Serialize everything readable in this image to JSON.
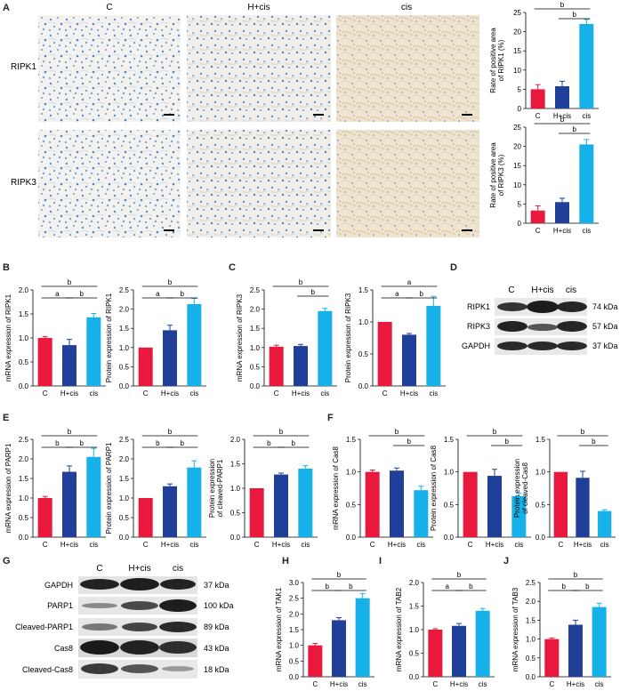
{
  "panels": {
    "A": "A",
    "B": "B",
    "C": "C",
    "D": "D",
    "E": "E",
    "F": "F",
    "G": "G",
    "H": "H",
    "I": "I",
    "J": "J"
  },
  "colors": {
    "c": "#e8193c",
    "hcis": "#1f3f99",
    "cis": "#17b1ea",
    "tissueBlue": "#5b8fd0",
    "tissueBg": "#f2f1ef",
    "tissueCis": "#efe3cf",
    "blot": "#2a2a2a"
  },
  "histology": {
    "columns": [
      "C",
      "H+cis",
      "cis"
    ],
    "rows": [
      "RIPK1",
      "RIPK3"
    ]
  },
  "blotD": {
    "lanes": [
      "C",
      "H+cis",
      "cis"
    ],
    "bands": [
      {
        "name": "RIPK1",
        "kda": "74 kDa"
      },
      {
        "name": "RIPK3",
        "kda": "57 kDa"
      },
      {
        "name": "GAPDH",
        "kda": "37 kDa"
      }
    ]
  },
  "blotG": {
    "lanes": [
      "C",
      "H+cis",
      "cis"
    ],
    "bands": [
      {
        "name": "GAPDH",
        "kda": "37 kDa"
      },
      {
        "name": "PARP1",
        "kda": "100 kDa"
      },
      {
        "name": "Cleaved-PARP1",
        "kda": "89 kDa"
      },
      {
        "name": "Cas8",
        "kda": "43 kDa"
      },
      {
        "name": "Cleaved-Cas8",
        "kda": "18 kDa"
      }
    ]
  },
  "chart_data": [
    {
      "id": "A1",
      "type": "bar",
      "categories": [
        "C",
        "H+cis",
        "cis"
      ],
      "values": [
        5,
        5.8,
        22
      ],
      "errors": [
        1.2,
        1.3,
        1.2
      ],
      "ylabel": [
        "Rate of positive area",
        "of RIPK1 (%)"
      ],
      "ylim": [
        0,
        25
      ],
      "ticks": [
        0,
        5,
        10,
        15,
        20,
        25
      ],
      "sig": [
        {
          "from": 0,
          "to": 2,
          "label": "b"
        },
        {
          "from": 1,
          "to": 2,
          "label": "b"
        }
      ]
    },
    {
      "id": "A2",
      "type": "bar",
      "categories": [
        "C",
        "H+cis",
        "cis"
      ],
      "values": [
        3.3,
        5.5,
        20.5
      ],
      "errors": [
        1.2,
        1,
        1.3
      ],
      "ylabel": [
        "Rate of positive area",
        "of RIPK3 (%)"
      ],
      "ylim": [
        0,
        25
      ],
      "ticks": [
        0,
        5,
        10,
        15,
        20,
        25
      ],
      "sig": [
        {
          "from": 0,
          "to": 2,
          "label": "b"
        },
        {
          "from": 1,
          "to": 2,
          "label": "b"
        }
      ]
    },
    {
      "id": "B1",
      "type": "bar",
      "categories": [
        "C",
        "H+cis",
        "cis"
      ],
      "values": [
        1.0,
        0.85,
        1.43
      ],
      "errors": [
        0.03,
        0.12,
        0.08
      ],
      "ylabel": [
        "mRNA expression of RIPK1"
      ],
      "ylim": [
        0,
        2
      ],
      "ticks": [
        0,
        0.5,
        1.0,
        1.5,
        2.0
      ],
      "sig": [
        {
          "from": 0,
          "to": 2,
          "label": "b"
        },
        {
          "from": 0,
          "to": 1,
          "label": "a"
        },
        {
          "from": 1,
          "to": 2,
          "label": "b"
        }
      ]
    },
    {
      "id": "B2",
      "type": "bar",
      "categories": [
        "C",
        "H+cis",
        "cis"
      ],
      "values": [
        1.0,
        1.45,
        2.13
      ],
      "errors": [
        0,
        0.13,
        0.15
      ],
      "ylabel": [
        "Protein expression of RIPK1"
      ],
      "ylim": [
        0,
        2.5
      ],
      "ticks": [
        0,
        0.5,
        1.0,
        1.5,
        2.0,
        2.5
      ],
      "sig": [
        {
          "from": 0,
          "to": 2,
          "label": "b"
        },
        {
          "from": 0,
          "to": 1,
          "label": "a"
        },
        {
          "from": 1,
          "to": 2,
          "label": "b"
        }
      ]
    },
    {
      "id": "C1",
      "type": "bar",
      "categories": [
        "C",
        "H+cis",
        "cis"
      ],
      "values": [
        1.02,
        1.04,
        1.95
      ],
      "errors": [
        0.04,
        0.04,
        0.07
      ],
      "ylabel": [
        "mRNA expression of RIPK3"
      ],
      "ylim": [
        0,
        2.5
      ],
      "ticks": [
        0,
        0.5,
        1.0,
        1.5,
        2.0,
        2.5
      ],
      "sig": [
        {
          "from": 0,
          "to": 2,
          "label": "b"
        },
        {
          "from": 1,
          "to": 2,
          "label": "b"
        }
      ]
    },
    {
      "id": "C2",
      "type": "bar",
      "categories": [
        "C",
        "H+cis",
        "cis"
      ],
      "values": [
        1.0,
        0.8,
        1.25
      ],
      "errors": [
        0,
        0.02,
        0.15
      ],
      "ylabel": [
        "Protein expression of RIPK3"
      ],
      "ylim": [
        0,
        1.5
      ],
      "ticks": [
        0,
        0.5,
        1.0,
        1.5
      ],
      "sig": [
        {
          "from": 0,
          "to": 2,
          "label": "a"
        },
        {
          "from": 0,
          "to": 1,
          "label": "a"
        },
        {
          "from": 1,
          "to": 2,
          "label": "b"
        }
      ]
    },
    {
      "id": "E1",
      "type": "bar",
      "categories": [
        "C",
        "H+cis",
        "cis"
      ],
      "values": [
        1.0,
        1.67,
        2.05
      ],
      "errors": [
        0.04,
        0.15,
        0.22
      ],
      "ylabel": [
        "mRNA expression of PARP1"
      ],
      "ylim": [
        0,
        2.5
      ],
      "ticks": [
        0,
        0.5,
        1.0,
        1.5,
        2.0,
        2.5
      ],
      "sig": [
        {
          "from": 0,
          "to": 2,
          "label": "b"
        },
        {
          "from": 0,
          "to": 1,
          "label": "b"
        },
        {
          "from": 1,
          "to": 2,
          "label": "b"
        }
      ]
    },
    {
      "id": "E2",
      "type": "bar",
      "categories": [
        "C",
        "H+cis",
        "cis"
      ],
      "values": [
        1.0,
        1.3,
        1.78
      ],
      "errors": [
        0,
        0.06,
        0.17
      ],
      "ylabel": [
        "Protein expression of PARP1"
      ],
      "ylim": [
        0,
        2.5
      ],
      "ticks": [
        0,
        0.5,
        1.0,
        1.5,
        2.0,
        2.5
      ],
      "sig": [
        {
          "from": 0,
          "to": 2,
          "label": "b"
        },
        {
          "from": 0,
          "to": 1,
          "label": "b"
        },
        {
          "from": 1,
          "to": 2,
          "label": "b"
        }
      ]
    },
    {
      "id": "E3",
      "type": "bar",
      "categories": [
        "C",
        "H+cis",
        "cis"
      ],
      "values": [
        1.0,
        1.28,
        1.4
      ],
      "errors": [
        0,
        0.03,
        0.06
      ],
      "ylabel": [
        "Protein expression",
        "of cleaved-PARP1"
      ],
      "ylim": [
        0,
        2
      ],
      "ticks": [
        0,
        0.5,
        1.0,
        1.5,
        2.0
      ],
      "sig": [
        {
          "from": 0,
          "to": 2,
          "label": "b"
        },
        {
          "from": 0,
          "to": 1,
          "label": "b"
        },
        {
          "from": 1,
          "to": 2,
          "label": "b"
        }
      ]
    },
    {
      "id": "F1",
      "type": "bar",
      "categories": [
        "C",
        "H+cis",
        "cis"
      ],
      "values": [
        1.0,
        1.02,
        0.72
      ],
      "errors": [
        0.03,
        0.04,
        0.06
      ],
      "ylabel": [
        "mRNA expression of Cas8"
      ],
      "ylim": [
        0,
        1.5
      ],
      "ticks": [
        0,
        0.5,
        1.0,
        1.5
      ],
      "sig": [
        {
          "from": 0,
          "to": 2,
          "label": "b"
        },
        {
          "from": 1,
          "to": 2,
          "label": "b"
        }
      ]
    },
    {
      "id": "F2",
      "type": "bar",
      "categories": [
        "C",
        "H+cis",
        "cis"
      ],
      "values": [
        1.0,
        0.94,
        0.63
      ],
      "errors": [
        0,
        0.1,
        0.04
      ],
      "ylabel": [
        "Protein expression of Cas8"
      ],
      "ylim": [
        0,
        1.5
      ],
      "ticks": [
        0,
        0.5,
        1.0,
        1.5
      ],
      "sig": [
        {
          "from": 0,
          "to": 2,
          "label": "b"
        },
        {
          "from": 1,
          "to": 2,
          "label": "b"
        }
      ]
    },
    {
      "id": "F3",
      "type": "bar",
      "categories": [
        "C",
        "H+cis",
        "cis"
      ],
      "values": [
        1.0,
        0.91,
        0.4
      ],
      "errors": [
        0,
        0.1,
        0.02
      ],
      "ylabel": [
        "Protein expression",
        "of cleaved-Cas8"
      ],
      "ylim": [
        0,
        1.5
      ],
      "ticks": [
        0,
        0.5,
        1.0,
        1.5
      ],
      "sig": [
        {
          "from": 0,
          "to": 2,
          "label": "b"
        },
        {
          "from": 1,
          "to": 2,
          "label": "b"
        }
      ]
    },
    {
      "id": "H",
      "type": "bar",
      "categories": [
        "C",
        "H+cis",
        "cis"
      ],
      "values": [
        1.0,
        1.8,
        2.5
      ],
      "errors": [
        0.06,
        0.08,
        0.15
      ],
      "ylabel": [
        "mRNA expression of TAK1"
      ],
      "ylim": [
        0,
        3
      ],
      "ticks": [
        0,
        0.5,
        1.0,
        1.5,
        2.0,
        2.5,
        3.0
      ],
      "sig": [
        {
          "from": 0,
          "to": 2,
          "label": "b"
        },
        {
          "from": 0,
          "to": 1,
          "label": "b"
        },
        {
          "from": 1,
          "to": 2,
          "label": "b"
        }
      ]
    },
    {
      "id": "I",
      "type": "bar",
      "categories": [
        "C",
        "H+cis",
        "cis"
      ],
      "values": [
        1.0,
        1.08,
        1.4
      ],
      "errors": [
        0.02,
        0.05,
        0.05
      ],
      "ylabel": [
        "mRNA expression of TAB2"
      ],
      "ylim": [
        0,
        2
      ],
      "ticks": [
        0,
        0.5,
        1.0,
        1.5,
        2.0
      ],
      "sig": [
        {
          "from": 0,
          "to": 2,
          "label": "b"
        },
        {
          "from": 0,
          "to": 1,
          "label": "a"
        },
        {
          "from": 1,
          "to": 2,
          "label": "b"
        }
      ]
    },
    {
      "id": "J",
      "type": "bar",
      "categories": [
        "C",
        "H+cis",
        "cis"
      ],
      "values": [
        1.0,
        1.38,
        1.85
      ],
      "errors": [
        0.03,
        0.12,
        0.1
      ],
      "ylabel": [
        "mRNA expression of TAB3"
      ],
      "ylim": [
        0,
        2.5
      ],
      "ticks": [
        0,
        0.5,
        1.0,
        1.5,
        2.0,
        2.5
      ],
      "sig": [
        {
          "from": 0,
          "to": 2,
          "label": "b"
        },
        {
          "from": 0,
          "to": 1,
          "label": "b"
        },
        {
          "from": 1,
          "to": 2,
          "label": "b"
        }
      ]
    }
  ]
}
